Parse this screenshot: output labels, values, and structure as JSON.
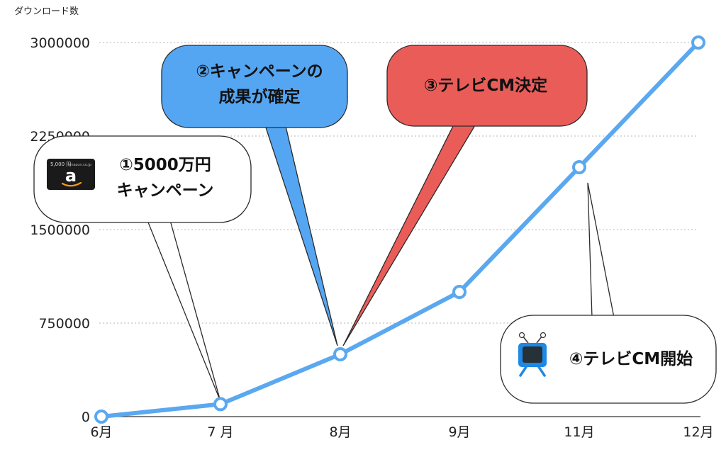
{
  "chart_data": {
    "type": "line",
    "ylabel": "ダウンロード数",
    "categories": [
      "6月",
      "7 月",
      "8月",
      "9月",
      "11月",
      "12月"
    ],
    "values": [
      0,
      100000,
      500000,
      1000000,
      2000000,
      3000000
    ],
    "yticks": [
      "0",
      "750000",
      "1500000",
      "2250000",
      "3000000"
    ],
    "ytick_values": [
      0,
      750000,
      1500000,
      2250000,
      3000000
    ],
    "ylim": [
      0,
      3000000
    ],
    "grid": true,
    "line_color": "#5aa8f0",
    "annotations": [
      {
        "lines": [
          "①5000万円",
          "キャンペーン"
        ],
        "color": "#ffffff",
        "text_color": "#111111",
        "points_to": "7 月",
        "icon": "gift-card-icon"
      },
      {
        "lines": [
          "②キャンペーンの",
          "成果が確定"
        ],
        "color": "#55a6f2",
        "text_color": "#111111",
        "points_to": "8月"
      },
      {
        "lines": [
          "③テレビCM決定"
        ],
        "color": "#ea5c58",
        "text_color": "#111111",
        "points_to": "8月"
      },
      {
        "lines": [
          "④テレビCM開始"
        ],
        "color": "#ffffff",
        "text_color": "#111111",
        "points_to": "11月",
        "icon": "tv-icon"
      }
    ],
    "gift_card": {
      "amount": "5,000 円",
      "brand": "amazon.co.jp",
      "glyph": "a"
    }
  }
}
